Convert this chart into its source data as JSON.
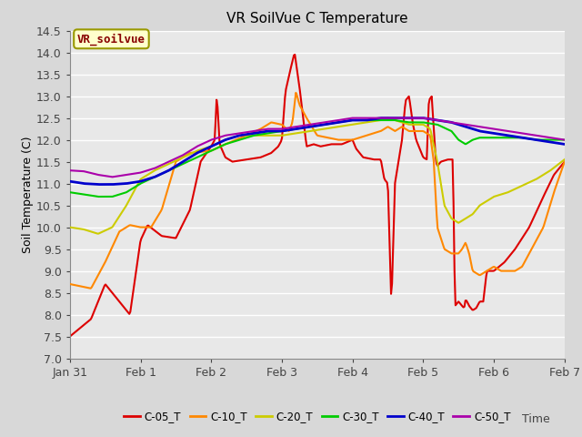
{
  "title": "VR SoilVue C Temperature",
  "xlabel": "Time",
  "ylabel": "Soil Temperature (C)",
  "ylim": [
    7.0,
    14.5
  ],
  "background_color": "#d8d8d8",
  "plot_bg_color": "#e8e8e8",
  "grid_color": "#ffffff",
  "annotation_text": "VR_soilvue",
  "annotation_bg": "#ffffcc",
  "annotation_border": "#999900",
  "annotation_text_color": "#880000",
  "legend_items": [
    "C-05_T",
    "C-10_T",
    "C-20_T",
    "C-30_T",
    "C-40_T",
    "C-50_T"
  ],
  "line_colors": [
    "#dd0000",
    "#ff8800",
    "#cccc00",
    "#00cc00",
    "#0000cc",
    "#aa00aa"
  ],
  "line_widths": [
    1.5,
    1.5,
    1.5,
    1.5,
    2.0,
    1.5
  ],
  "xtick_labels": [
    "Jan 31",
    "Feb 1",
    "Feb 2",
    "Feb 3",
    "Feb 4",
    "Feb 5",
    "Feb 6",
    "Feb 7"
  ],
  "num_points": 500
}
